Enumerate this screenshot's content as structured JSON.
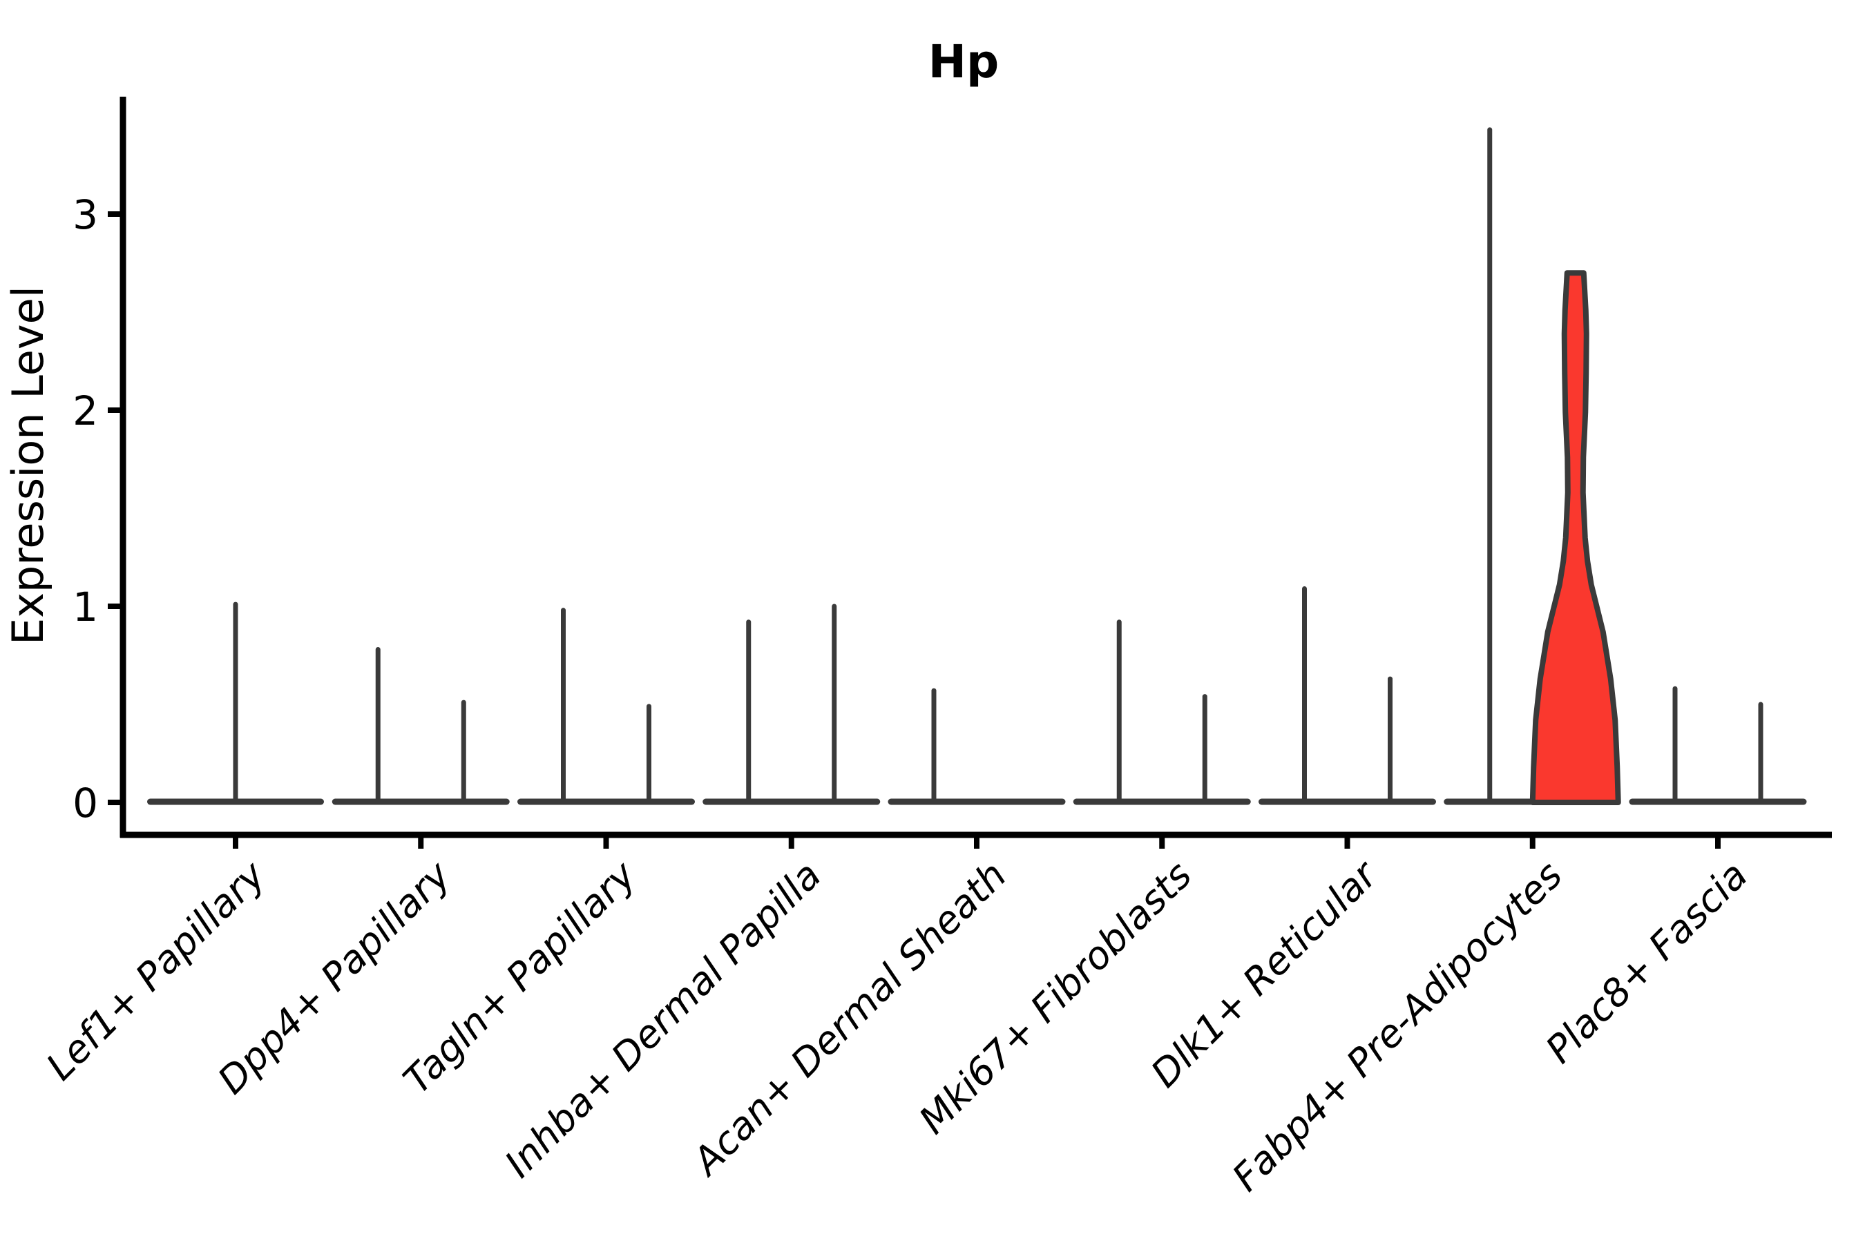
{
  "chart_data": {
    "type": "violin",
    "title": "Hp",
    "xlabel": "",
    "ylabel": "Expression Level",
    "yticks": [
      0,
      1,
      2,
      3
    ],
    "ylim": [
      0,
      3.55
    ],
    "x_tick_rotation": 45,
    "legend": "none",
    "grid": false,
    "categories": [
      "Lef1+ Papillary",
      "Dpp4+ Papillary",
      "Tagln+ Papillary",
      "Inhba+ Dermal Papilla",
      "Acan+ Dermal Sheath",
      "Mki67+ Fibroblasts",
      "Dlk1+ Reticular",
      "Fabp4+ Pre-Adipocytes",
      "Plac8+ Fascia"
    ],
    "violins": [
      {
        "category_index": 0,
        "position": "center",
        "max_expression": 1.01,
        "filled": false
      },
      {
        "category_index": 1,
        "position": "left",
        "max_expression": 0.78,
        "filled": false
      },
      {
        "category_index": 1,
        "position": "right",
        "max_expression": 0.51,
        "filled": false
      },
      {
        "category_index": 2,
        "position": "left",
        "max_expression": 0.98,
        "filled": false
      },
      {
        "category_index": 2,
        "position": "right",
        "max_expression": 0.49,
        "filled": false
      },
      {
        "category_index": 3,
        "position": "left",
        "max_expression": 0.92,
        "filled": false
      },
      {
        "category_index": 3,
        "position": "right",
        "max_expression": 1.0,
        "filled": false
      },
      {
        "category_index": 4,
        "position": "left",
        "max_expression": 0.57,
        "filled": false
      },
      {
        "category_index": 4,
        "position": "right",
        "max_expression": 0.0,
        "filled": false
      },
      {
        "category_index": 5,
        "position": "left",
        "max_expression": 0.92,
        "filled": false
      },
      {
        "category_index": 5,
        "position": "right",
        "max_expression": 0.54,
        "filled": false
      },
      {
        "category_index": 6,
        "position": "left",
        "max_expression": 1.09,
        "filled": false
      },
      {
        "category_index": 6,
        "position": "right",
        "max_expression": 0.63,
        "filled": false
      },
      {
        "category_index": 7,
        "position": "left",
        "max_expression": 3.43,
        "filled": false
      },
      {
        "category_index": 7,
        "position": "right",
        "max_expression": 2.7,
        "filled": true,
        "profile_v_halfwidth": [
          [
            2.7,
            12
          ],
          [
            2.51,
            15
          ],
          [
            2.39,
            16
          ],
          [
            2.19,
            15.5
          ],
          [
            1.99,
            14.5
          ],
          [
            1.76,
            11.5
          ],
          [
            1.58,
            11
          ],
          [
            1.35,
            14
          ],
          [
            1.23,
            17.5
          ],
          [
            1.11,
            23
          ],
          [
            0.99,
            31.5
          ],
          [
            0.87,
            40
          ],
          [
            0.63,
            51
          ],
          [
            0.42,
            57.5
          ],
          [
            0.18,
            60.5
          ],
          [
            0.0,
            62
          ]
        ]
      },
      {
        "category_index": 8,
        "position": "left",
        "max_expression": 0.58,
        "filled": false
      },
      {
        "category_index": 8,
        "position": "right",
        "max_expression": 0.5,
        "filled": false
      }
    ],
    "colors": {
      "violin_outline": "#3a3a3a",
      "highlight_fill": "#fa382e",
      "axis": "#000000",
      "text": "#000000",
      "background": "#ffffff"
    }
  }
}
